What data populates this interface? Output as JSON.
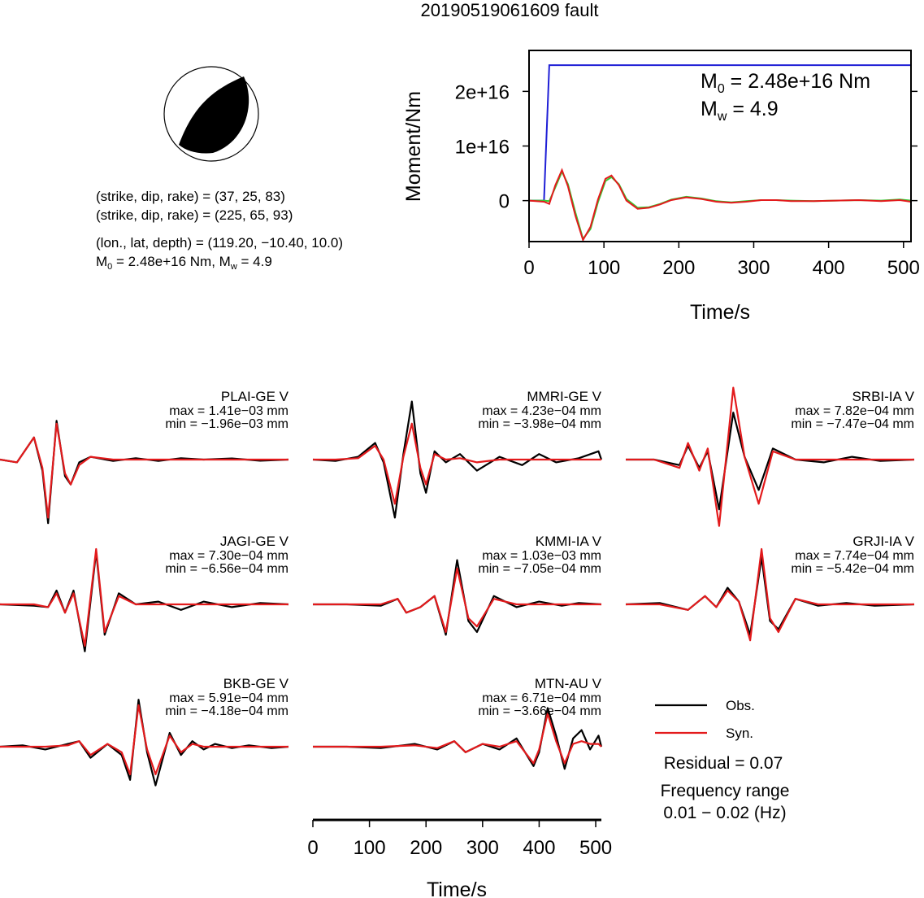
{
  "title": "20190519061609 fault",
  "mechanism": {
    "plane1": "(strike, dip, rake) = (37, 25, 83)",
    "plane2": "(strike, dip, rake) = (225, 65, 93)",
    "location": "(lon., lat, depth) = (119.20, −10.40, 10.0)",
    "m0_prefix": "M",
    "m0_sub": "0",
    "m0_value": " = 2.48e+16 Nm, M",
    "mw_sub": "w",
    "mw_value": " = 4.9"
  },
  "moment_panel": {
    "m0_label": "M",
    "m0_sub": "0",
    "m0_value": " = 2.48e+16 Nm",
    "mw_label": "M",
    "mw_sub": "w",
    "mw_value": " = 4.9"
  },
  "legend": {
    "obs": "Obs.",
    "syn": "Syn.",
    "residual": "Residual = 0.07",
    "freq_title": "Frequency range",
    "freq_value": "0.01 − 0.02 (Hz)"
  },
  "colors": {
    "obs": "#000000",
    "syn": "#e31a1c",
    "moment": "#1f1fd6",
    "rate_green": "#33cc33",
    "rate_red": "#e31a1c"
  },
  "chart_data": [
    {
      "type": "line",
      "title": "",
      "xlabel": "Time/s",
      "ylabel": "Moment/Nm",
      "xlim": [
        0,
        510
      ],
      "ylim": [
        -7500000000000000.0,
        2.75e+16
      ],
      "xticks": [
        0,
        100,
        200,
        300,
        400,
        500
      ],
      "yticks": [
        0,
        1e+16,
        2e+16
      ],
      "yticklabels": [
        "0",
        "1e+16",
        "2e+16"
      ],
      "series": [
        {
          "color": "#1f1fd6",
          "x": [
            0,
            20,
            27,
            510
          ],
          "y": [
            0,
            0,
            2.48e+16,
            2.48e+16
          ]
        },
        {
          "color": "#33cc33",
          "x": [
            0,
            20,
            27,
            35,
            44,
            52,
            62,
            72,
            82,
            92,
            102,
            110,
            120,
            130,
            145,
            160,
            175,
            190,
            210,
            230,
            250,
            270,
            290,
            310,
            330,
            350,
            380,
            410,
            440,
            470,
            495,
            510
          ],
          "y": [
            0,
            0,
            -100000000000000.0,
            2400000000000000.0,
            5300000000000000.0,
            3000000000000000.0,
            -2200000000000000.0,
            -7000000000000000.0,
            -5200000000000000.0,
            -300000000000000.0,
            3600000000000000.0,
            4300000000000000.0,
            3000000000000000.0,
            300000000000000.0,
            -1300000000000000.0,
            -1200000000000000.0,
            -600000000000000.0,
            200000000000000.0,
            700000000000000.0,
            400000000000000.0,
            -100000000000000.0,
            -300000000000000.0,
            -100000000000000.0,
            100000000000000.0,
            100000000000000.0,
            0,
            -100000000000000.0,
            0,
            100000000000000.0,
            0,
            200000000000000.0,
            0
          ]
        },
        {
          "color": "#e31a1c",
          "x": [
            0,
            20,
            27,
            35,
            44,
            52,
            62,
            72,
            82,
            92,
            102,
            110,
            120,
            130,
            145,
            160,
            175,
            190,
            210,
            230,
            250,
            270,
            290,
            310,
            330,
            350,
            380,
            410,
            440,
            470,
            495,
            510
          ],
          "y": [
            0,
            -200000000000000.0,
            -600000000000000.0,
            2800000000000000.0,
            5600000000000000.0,
            2600000000000000.0,
            -2800000000000000.0,
            -7200000000000000.0,
            -4800000000000000.0,
            200000000000000.0,
            4000000000000000.0,
            4600000000000000.0,
            2800000000000000.0,
            0,
            -1500000000000000.0,
            -1300000000000000.0,
            -700000000000000.0,
            100000000000000.0,
            600000000000000.0,
            300000000000000.0,
            -200000000000000.0,
            -400000000000000.0,
            -200000000000000.0,
            100000000000000.0,
            100000000000000.0,
            -100000000000000.0,
            -100000000000000.0,
            0,
            100000000000000.0,
            -100000000000000.0,
            100000000000000.0,
            -200000000000000.0
          ]
        }
      ]
    },
    {
      "type": "line",
      "xlabel": "Time/s",
      "xlim": [
        0,
        510
      ],
      "xticks": [
        0,
        100,
        200,
        300,
        400,
        500
      ],
      "stations": [
        {
          "name": "PLAI-GE V",
          "max": "max = 1.41e−03 mm",
          "min": "min = −1.96e−03 mm",
          "obs": {
            "x": [
              0,
              30,
              60,
              75,
              85,
              100,
              115,
              125,
              140,
              160,
              200,
              240,
              280,
              320,
              360,
              410,
              460,
              510
            ],
            "y": [
              0,
              -0.1,
              0.8,
              -0.4,
              -2.3,
              1.4,
              -0.6,
              -0.9,
              -0.1,
              0.1,
              -0.05,
              0.05,
              -0.05,
              0.05,
              0,
              0.04,
              -0.04,
              0
            ]
          },
          "syn": {
            "x": [
              0,
              30,
              60,
              75,
              85,
              100,
              115,
              125,
              140,
              160,
              200,
              240,
              280,
              320,
              360,
              410,
              460,
              510
            ],
            "y": [
              0,
              -0.1,
              0.8,
              -0.3,
              -2.1,
              1.3,
              -0.5,
              -0.9,
              -0.2,
              0.1,
              0,
              0,
              0,
              0,
              0,
              0,
              0,
              0
            ]
          }
        },
        {
          "name": "MMRI-GE V",
          "max": "max = 4.23e−04 mm",
          "min": "min = −3.98e−04 mm",
          "obs": {
            "x": [
              0,
              40,
              80,
              110,
              125,
              145,
              160,
              175,
              190,
              200,
              215,
              235,
              260,
              290,
              330,
              370,
              400,
              430,
              470,
              505,
              510
            ],
            "y": [
              0,
              -0.05,
              0.1,
              0.6,
              -0.1,
              -2.1,
              0.2,
              2.1,
              -0.5,
              -1.2,
              0.3,
              -0.1,
              0.2,
              -0.4,
              0.1,
              -0.2,
              0.2,
              -0.1,
              0.05,
              0.3,
              0
            ]
          },
          "syn": {
            "x": [
              0,
              40,
              80,
              110,
              125,
              145,
              160,
              175,
              190,
              200,
              215,
              235,
              260,
              290,
              330,
              370,
              400,
              430,
              470,
              505,
              510
            ],
            "y": [
              0,
              0,
              0.05,
              0.5,
              0,
              -1.6,
              0.1,
              1.3,
              -0.3,
              -0.9,
              0.2,
              0,
              0.05,
              -0.1,
              0,
              0,
              0,
              0,
              0,
              0,
              0
            ]
          }
        },
        {
          "name": "SRBI-IA V",
          "max": "max = 7.82e−04 mm",
          "min": "min = −7.47e−04 mm",
          "obs": {
            "x": [
              0,
              50,
              95,
              110,
              130,
              145,
              165,
              190,
              210,
              235,
              260,
              300,
              350,
              400,
              450,
              510
            ],
            "y": [
              0,
              0,
              -0.2,
              0.5,
              -0.3,
              0.3,
              -1.8,
              1.7,
              0.1,
              -1.1,
              0.4,
              0,
              -0.1,
              0.1,
              -0.05,
              0
            ]
          },
          "syn": {
            "x": [
              0,
              50,
              95,
              110,
              130,
              145,
              165,
              190,
              210,
              235,
              260,
              300,
              350,
              400,
              450,
              510
            ],
            "y": [
              0,
              0,
              -0.3,
              0.6,
              -0.4,
              0.4,
              -2.4,
              2.6,
              0.1,
              -1.6,
              0.3,
              0,
              0,
              0,
              0,
              0
            ]
          }
        },
        {
          "name": "JAGI-GE V",
          "max": "max = 7.30e−04 mm",
          "min": "min = −6.56e−04 mm",
          "obs": {
            "x": [
              0,
              60,
              85,
              100,
              115,
              130,
              150,
              170,
              185,
              210,
              240,
              280,
              320,
              360,
              410,
              460,
              510
            ],
            "y": [
              0,
              -0.05,
              -0.1,
              0.5,
              -0.3,
              0.5,
              -1.7,
              1.9,
              -1.1,
              0.4,
              0,
              0.1,
              -0.2,
              0.1,
              -0.1,
              0.05,
              0
            ]
          },
          "syn": {
            "x": [
              0,
              60,
              85,
              100,
              115,
              130,
              150,
              170,
              185,
              210,
              240,
              280,
              320,
              360,
              410,
              460,
              510
            ],
            "y": [
              0,
              0,
              -0.1,
              0.4,
              -0.3,
              0.4,
              -1.5,
              2.0,
              -1.0,
              0.3,
              0,
              0,
              0,
              0,
              0,
              0,
              0
            ]
          }
        },
        {
          "name": "KMMI-IA V",
          "max": "max = 1.03e−03 mm",
          "min": "min = −7.05e−04 mm",
          "obs": {
            "x": [
              0,
              60,
              120,
              150,
              165,
              190,
              215,
              235,
              255,
              275,
              290,
              320,
              360,
              400,
              440,
              470,
              510
            ],
            "y": [
              0,
              0,
              -0.05,
              0.2,
              -0.3,
              -0.1,
              0.3,
              -1.1,
              1.6,
              -0.6,
              -1.0,
              0.3,
              -0.1,
              0.1,
              -0.05,
              0.05,
              0
            ]
          },
          "syn": {
            "x": [
              0,
              60,
              120,
              150,
              165,
              190,
              215,
              235,
              255,
              275,
              290,
              320,
              360,
              400,
              440,
              470,
              510
            ],
            "y": [
              0,
              0,
              0,
              0.2,
              -0.3,
              -0.1,
              0.3,
              -1.0,
              1.3,
              -0.5,
              -0.8,
              0.2,
              0,
              0,
              0,
              0,
              0
            ]
          }
        },
        {
          "name": "GRJI-IA V",
          "max": "max = 7.74e−04 mm",
          "min": "min = −5.42e−04 mm",
          "obs": {
            "x": [
              0,
              60,
              110,
              140,
              160,
              180,
              200,
              220,
              240,
              255,
              270,
              300,
              340,
              390,
              440,
              510
            ],
            "y": [
              0,
              0.05,
              -0.2,
              0.3,
              -0.1,
              0.6,
              0.1,
              -1.1,
              1.7,
              -0.6,
              -0.9,
              0.2,
              -0.05,
              0.05,
              -0.05,
              0
            ]
          },
          "syn": {
            "x": [
              0,
              60,
              110,
              140,
              160,
              180,
              200,
              220,
              240,
              255,
              270,
              300,
              340,
              390,
              440,
              510
            ],
            "y": [
              0,
              0,
              -0.2,
              0.3,
              -0.1,
              0.5,
              0.1,
              -1.3,
              2.0,
              -0.5,
              -1.0,
              0.2,
              0,
              0,
              0,
              0
            ]
          }
        },
        {
          "name": "BKB-GE V",
          "max": "max = 5.91e−04 mm",
          "min": "min = −4.18e−04 mm",
          "obs": {
            "x": [
              0,
              40,
              80,
              120,
              140,
              160,
              190,
              215,
              230,
              245,
              260,
              275,
              300,
              320,
              340,
              360,
              380,
              410,
              440,
              480,
              510
            ],
            "y": [
              0,
              0.05,
              -0.1,
              0.1,
              0.2,
              -0.4,
              0.1,
              -0.3,
              -1.2,
              1.7,
              -0.2,
              -1.4,
              0.5,
              -0.3,
              0.2,
              -0.1,
              0.1,
              -0.05,
              0.05,
              -0.05,
              0
            ]
          },
          "syn": {
            "x": [
              0,
              40,
              80,
              120,
              140,
              160,
              190,
              215,
              230,
              245,
              260,
              275,
              300,
              320,
              340,
              360,
              380,
              410,
              440,
              480,
              510
            ],
            "y": [
              0,
              0,
              0,
              0.05,
              0.2,
              -0.3,
              0.1,
              -0.2,
              -1.0,
              1.5,
              -0.1,
              -1.0,
              0.4,
              -0.2,
              0.1,
              0,
              0,
              0,
              0,
              0,
              0
            ]
          }
        },
        {
          "name": "MTN-AU V",
          "max": "max = 6.71e−04 mm",
          "min": "min = −3.66e−04 mm",
          "obs": {
            "x": [
              0,
              60,
              120,
              180,
              220,
              250,
              270,
              300,
              330,
              360,
              390,
              400,
              415,
              430,
              445,
              460,
              475,
              490,
              505,
              510
            ],
            "y": [
              0,
              0,
              -0.05,
              0.1,
              -0.1,
              0.2,
              -0.2,
              0.1,
              -0.1,
              0.3,
              -0.7,
              -0.2,
              1.4,
              0.4,
              -0.8,
              0.3,
              0.6,
              -0.1,
              0.4,
              0
            ]
          },
          "syn": {
            "x": [
              0,
              60,
              120,
              180,
              220,
              250,
              270,
              300,
              330,
              360,
              390,
              400,
              415,
              430,
              445,
              460,
              475,
              490,
              505,
              510
            ],
            "y": [
              0,
              0,
              0,
              0.05,
              -0.05,
              0.2,
              -0.2,
              0.1,
              0,
              0.2,
              -0.6,
              -0.1,
              1.2,
              0.2,
              -0.6,
              0.1,
              0.2,
              0.1,
              0.1,
              0
            ]
          }
        }
      ]
    }
  ]
}
